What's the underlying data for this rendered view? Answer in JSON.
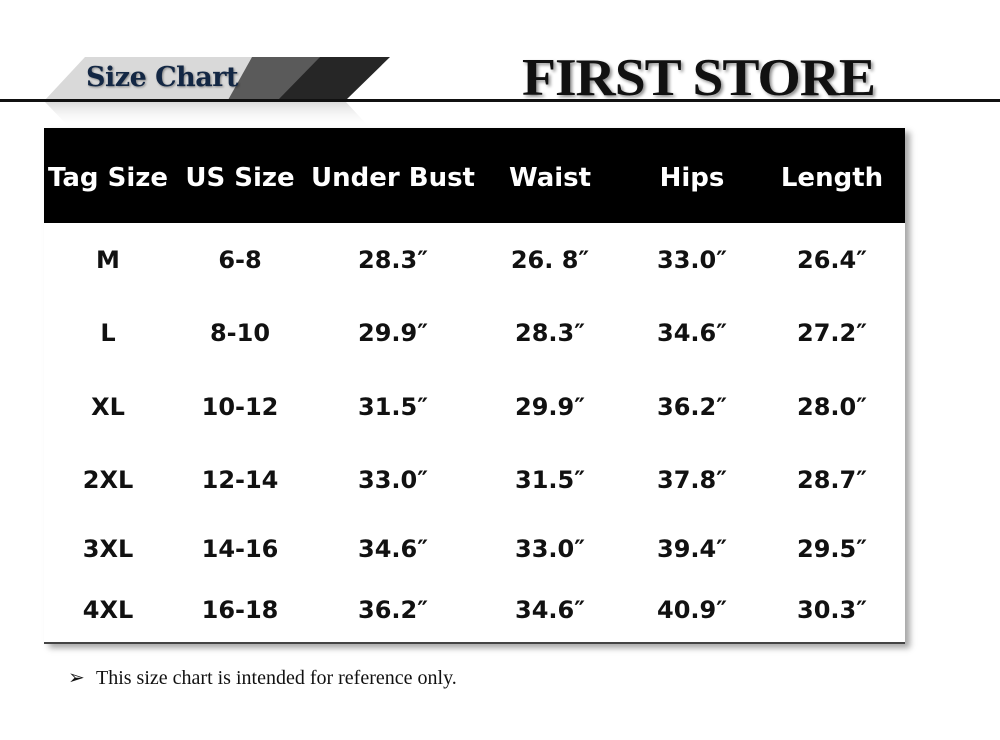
{
  "banner": {
    "title": "Size Chart",
    "brand": "FIRST STORE"
  },
  "table": {
    "headers": [
      "Tag Size",
      "US Size",
      "Under Bust",
      "Waist",
      "Hips",
      "Length"
    ],
    "rows": [
      [
        "M",
        "6-8",
        "28.3″",
        "26. 8″",
        "33.0″",
        "26.4″"
      ],
      [
        "L",
        "8-10",
        "29.9″",
        "28.3″",
        "34.6″",
        "27.2″"
      ],
      [
        "XL",
        "10-12",
        "31.5″",
        "29.9″",
        "36.2″",
        "28.0″"
      ],
      [
        "2XL",
        "12-14",
        "33.0″",
        "31.5″",
        "37.8″",
        "28.7″"
      ],
      [
        "3XL",
        "14-16",
        "34.6″",
        "33.0″",
        "39.4″",
        "29.5″"
      ],
      [
        "4XL",
        "16-18",
        "36.2″",
        "34.6″",
        "40.9″",
        "30.3″"
      ]
    ]
  },
  "note": {
    "bullet_icon": "arrow-bullet-icon",
    "text": "This size chart is intended for reference only."
  }
}
